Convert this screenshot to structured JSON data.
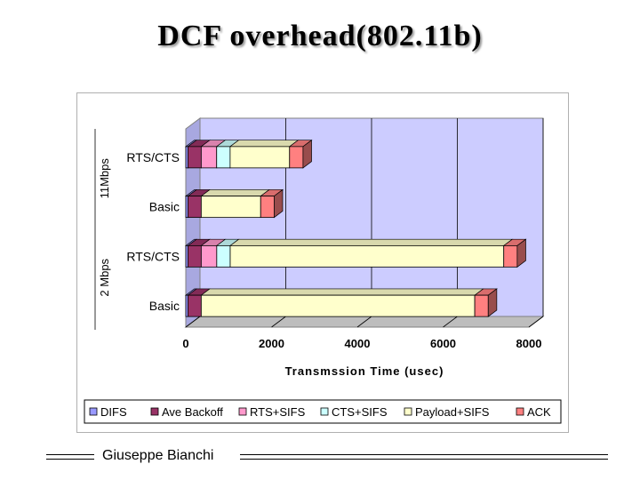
{
  "title": "DCF overhead(802.11b)",
  "footer": {
    "author": "Giuseppe Bianchi"
  },
  "chart_data": {
    "type": "bar",
    "orientation": "horizontal",
    "stacked": true,
    "style": "3d",
    "xlabel": "Transmssion Time (usec)",
    "xlim": [
      0,
      8000
    ],
    "xticks": [
      0,
      2000,
      4000,
      6000,
      8000
    ],
    "groups": [
      {
        "label": "11Mbps",
        "categories": [
          "RTS/CTS",
          "Basic"
        ]
      },
      {
        "label": "2 Mbps",
        "categories": [
          "RTS/CTS",
          "Basic"
        ]
      }
    ],
    "categories": [
      "11Mbps RTS/CTS",
      "11Mbps Basic",
      "2 Mbps RTS/CTS",
      "2 Mbps Basic"
    ],
    "category_labels": [
      "RTS/CTS",
      "Basic",
      "RTS/CTS",
      "Basic"
    ],
    "series": [
      {
        "name": "DIFS",
        "color": "#9999ff",
        "values": [
          50,
          50,
          50,
          50
        ]
      },
      {
        "name": "Ave Backoff",
        "color": "#993366",
        "values": [
          310,
          310,
          310,
          310
        ]
      },
      {
        "name": "RTS+SIFS",
        "color": "#ff99cc",
        "values": [
          360,
          0,
          362,
          0
        ]
      },
      {
        "name": "CTS+SIFS",
        "color": "#ccffff",
        "values": [
          314,
          0,
          314,
          0
        ]
      },
      {
        "name": "Payload+SIFS",
        "color": "#ffffcc",
        "values": [
          1386,
          1386,
          6378,
          6378
        ]
      },
      {
        "name": "ACK",
        "color": "#ff8080",
        "values": [
          314,
          314,
          314,
          314
        ]
      }
    ],
    "legend_position": "bottom",
    "grid": true,
    "plot_background": "#ccccff"
  }
}
